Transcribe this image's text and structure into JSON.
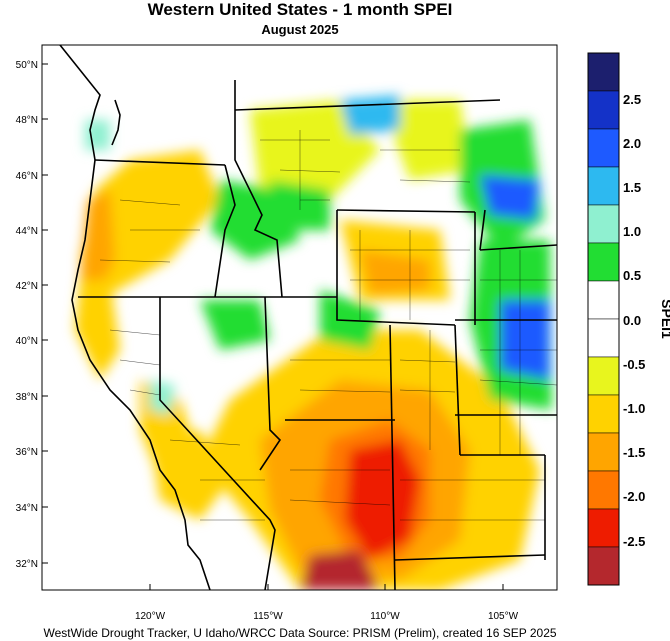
{
  "title": "Western United States - 1 month SPEI",
  "subtitle": "August 2025",
  "credit": "WestWide Drought Tracker, U Idaho/WRCC Data Source: PRISM (Prelim), created 16 SEP 2025",
  "latitude_labels": [
    "50°N",
    "48°N",
    "46°N",
    "44°N",
    "42°N",
    "40°N",
    "38°N",
    "36°N",
    "34°N",
    "32°N"
  ],
  "longitude_labels": [
    "120°W",
    "115°W",
    "110°W",
    "105°W"
  ],
  "legend": {
    "title": "SPEI1",
    "tick_labels": [
      "2.5",
      "2.0",
      "1.5",
      "1.0",
      "0.5",
      "0.0",
      "-0.5",
      "-1.0",
      "-1.5",
      "-2.0",
      "-2.5"
    ],
    "colors": [
      "#1c1f6e",
      "#1432c8",
      "#1e5aff",
      "#2db9f0",
      "#8ff0d0",
      "#22dd33",
      "#ffffff",
      "#ffffff",
      "#e8f51e",
      "#ffd200",
      "#ffa500",
      "#ff7800",
      "#ee1c00",
      "#b4282d"
    ]
  }
}
